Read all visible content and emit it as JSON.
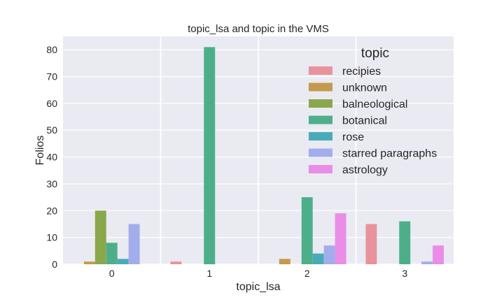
{
  "chart_data": {
    "type": "bar",
    "title": "topic_lsa and topic in the VMS",
    "xlabel": "topic_lsa",
    "ylabel": "Folios",
    "categories": [
      "0",
      "1",
      "2",
      "3"
    ],
    "ylim": [
      0,
      85
    ],
    "yticks": [
      0,
      10,
      20,
      30,
      40,
      50,
      60,
      70,
      80
    ],
    "grid": true,
    "legend_title": "topic",
    "legend_position": "upper-right",
    "series": [
      {
        "name": "recipies",
        "color": "#e8939b",
        "values": [
          0,
          1,
          0,
          15
        ]
      },
      {
        "name": "unknown",
        "color": "#c49a4c",
        "values": [
          1,
          0,
          2,
          0
        ]
      },
      {
        "name": "balneological",
        "color": "#8aa84b",
        "values": [
          20,
          0,
          0,
          0
        ]
      },
      {
        "name": "botanical",
        "color": "#4daf8a",
        "values": [
          8,
          81,
          25,
          16
        ]
      },
      {
        "name": "rose",
        "color": "#4aabb8",
        "values": [
          2,
          0,
          4,
          0
        ]
      },
      {
        "name": "starred paragraphs",
        "color": "#a2aeec",
        "values": [
          15,
          0,
          7,
          1
        ]
      },
      {
        "name": "astrology",
        "color": "#ea8de6",
        "values": [
          0,
          0,
          19,
          7
        ]
      }
    ],
    "background": "#eaeaf2"
  }
}
